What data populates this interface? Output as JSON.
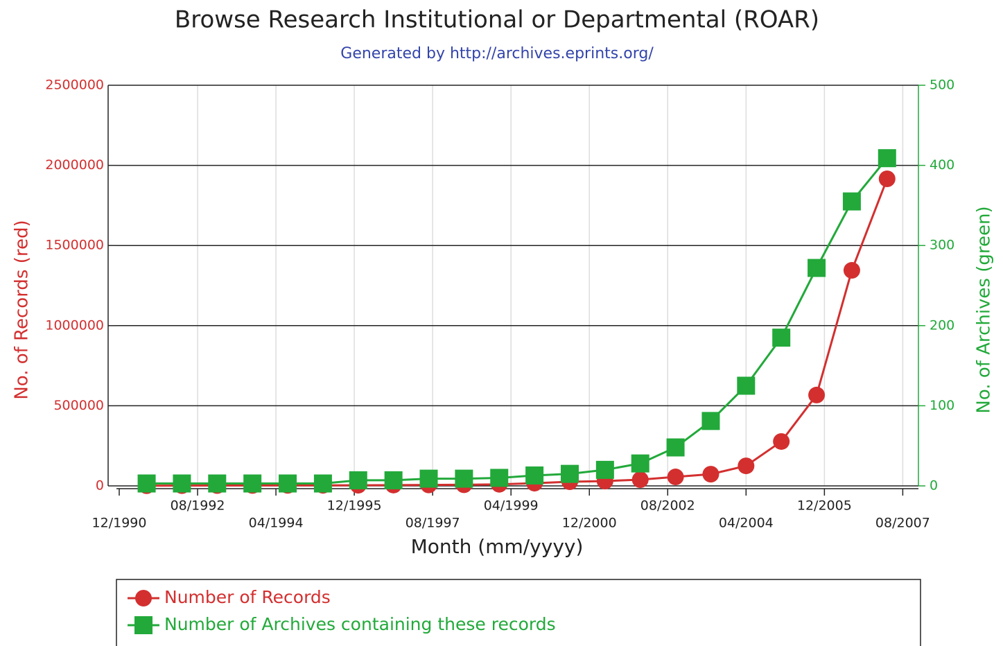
{
  "chart_data": {
    "type": "line",
    "title": "Browse Research Institutional or Departmental (ROAR)",
    "subtitle": "Generated by http://archives.eprints.org/",
    "x_label": "Month (mm/yyyy)",
    "y_label": "No. of Records (red)",
    "y2_label": "No. of Archives (green)",
    "x": [
      "07/1991",
      "04/1992",
      "01/1993",
      "10/1993",
      "07/1994",
      "04/1995",
      "01/1996",
      "10/1996",
      "07/1997",
      "04/1998",
      "01/1999",
      "10/1999",
      "07/2000",
      "04/2001",
      "01/2002",
      "10/2002",
      "07/2003",
      "04/2004",
      "01/2005",
      "10/2005",
      "07/2006",
      "04/2007"
    ],
    "xlim": [
      "12/1990",
      "12/2007"
    ],
    "xticks": [
      "12/1990",
      "08/1992",
      "04/1994",
      "12/1995",
      "08/1997",
      "04/1999",
      "12/2000",
      "08/2002",
      "04/2004",
      "12/2005",
      "08/2007"
    ],
    "ylim": [
      0,
      2500000
    ],
    "yticks": [
      0,
      500000,
      1000000,
      1500000,
      2000000,
      2500000
    ],
    "y2lim": [
      0,
      500
    ],
    "y2ticks": [
      0,
      100,
      200,
      300,
      400,
      500
    ],
    "grid": true,
    "series": [
      {
        "name": "Number of Records",
        "color": "#d32f2f",
        "marker": "circle",
        "values": [
          1000,
          1500,
          2000,
          2500,
          3000,
          3500,
          4000,
          5000,
          6000,
          7000,
          10000,
          17000,
          26000,
          30000,
          39000,
          56000,
          73000,
          125000,
          277000,
          567000,
          1345000,
          1916000
        ]
      },
      {
        "name": "Number of Archives containing these records",
        "color": "#22a93a",
        "marker": "square",
        "axis": "y2",
        "values": [
          3,
          3,
          3,
          3,
          3,
          3,
          7,
          7,
          9,
          9,
          10,
          13,
          15,
          20,
          28,
          48,
          81,
          125,
          185,
          272,
          355,
          409
        ]
      }
    ]
  }
}
